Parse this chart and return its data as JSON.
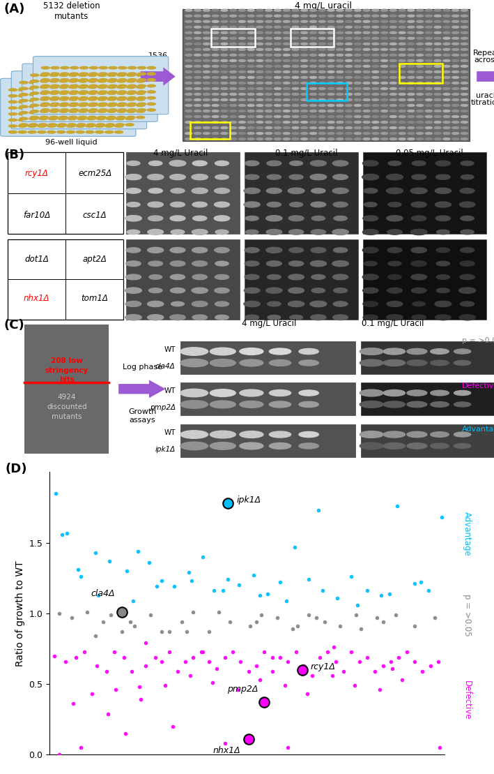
{
  "background_color": "#ffffff",
  "arrow_color": "#9b59d4",
  "scatter_cyan_x": [
    0.4,
    1.1,
    2.0,
    2.9,
    3.8,
    4.9,
    5.6,
    6.3,
    7.1,
    7.9,
    8.8,
    9.7,
    10.4,
    11.3,
    12.0,
    12.9,
    13.8,
    14.6,
    15.5,
    16.4,
    17.3,
    18.2,
    19.1,
    20.1,
    21.0,
    22.0,
    23.1,
    24.0,
    0.8,
    1.8,
    3.1,
    5.3,
    6.8,
    9.0,
    11.0,
    13.3,
    15.0,
    17.0,
    19.5,
    21.5,
    23.5,
    24.8
  ],
  "scatter_cyan_y": [
    1.85,
    1.57,
    1.26,
    1.43,
    1.37,
    1.3,
    1.44,
    1.36,
    1.23,
    1.19,
    1.29,
    1.4,
    1.16,
    1.24,
    1.2,
    1.27,
    1.14,
    1.22,
    1.47,
    1.24,
    1.16,
    1.11,
    1.26,
    1.16,
    1.13,
    1.76,
    1.21,
    1.16,
    1.56,
    1.31,
    1.13,
    1.09,
    1.19,
    1.23,
    1.16,
    1.13,
    1.09,
    1.73,
    1.06,
    1.14,
    1.22,
    1.68
  ],
  "scatter_gray_x": [
    0.6,
    1.4,
    2.4,
    3.4,
    4.6,
    5.4,
    6.4,
    7.6,
    8.4,
    9.1,
    10.1,
    11.4,
    12.7,
    13.4,
    14.4,
    15.4,
    16.4,
    17.4,
    18.4,
    19.4,
    20.7,
    21.1,
    21.9,
    23.1,
    24.4,
    2.9,
    5.1,
    7.1,
    10.7,
    13.1,
    16.9,
    19.7,
    3.9,
    8.7,
    15.7
  ],
  "scatter_gray_y": [
    1.0,
    0.97,
    1.01,
    0.94,
    0.87,
    0.91,
    0.99,
    0.87,
    0.94,
    1.01,
    0.87,
    0.94,
    0.91,
    0.99,
    0.97,
    0.89,
    0.99,
    0.94,
    0.91,
    0.99,
    0.97,
    0.94,
    0.99,
    0.91,
    0.97,
    0.84,
    0.94,
    0.87,
    1.01,
    0.94,
    0.97,
    0.89,
    0.99,
    0.87,
    0.91
  ],
  "scatter_magenta_x": [
    0.3,
    1.0,
    1.7,
    2.2,
    3.0,
    3.6,
    4.1,
    4.7,
    5.2,
    5.7,
    6.1,
    6.7,
    7.1,
    7.6,
    8.1,
    8.6,
    9.1,
    9.6,
    10.1,
    10.6,
    11.1,
    11.6,
    12.1,
    12.6,
    13.1,
    13.6,
    14.1,
    14.6,
    15.1,
    15.6,
    16.1,
    16.6,
    17.1,
    17.6,
    18.1,
    18.6,
    19.1,
    19.6,
    20.1,
    20.6,
    21.1,
    21.6,
    22.1,
    22.6,
    23.1,
    23.6,
    24.1,
    24.6,
    1.5,
    2.7,
    4.2,
    5.8,
    7.3,
    8.9,
    10.3,
    11.9,
    13.3,
    14.9,
    16.3,
    17.9,
    19.3,
    20.9,
    22.3,
    3.7,
    6.1,
    9.7,
    14.1,
    18.0,
    21.7,
    0.6,
    2.0,
    4.8,
    7.8,
    11.1,
    15.1,
    24.7
  ],
  "scatter_magenta_y": [
    0.7,
    0.66,
    0.69,
    0.73,
    0.63,
    0.59,
    0.73,
    0.69,
    0.59,
    0.48,
    0.63,
    0.69,
    0.66,
    0.73,
    0.59,
    0.66,
    0.69,
    0.73,
    0.66,
    0.61,
    0.69,
    0.73,
    0.66,
    0.59,
    0.63,
    0.73,
    0.59,
    0.69,
    0.66,
    0.73,
    0.63,
    0.56,
    0.69,
    0.73,
    0.66,
    0.59,
    0.73,
    0.66,
    0.69,
    0.59,
    0.63,
    0.66,
    0.69,
    0.73,
    0.66,
    0.59,
    0.63,
    0.66,
    0.36,
    0.43,
    0.46,
    0.39,
    0.49,
    0.56,
    0.51,
    0.46,
    0.53,
    0.49,
    0.43,
    0.56,
    0.49,
    0.46,
    0.53,
    0.29,
    0.79,
    0.73,
    0.69,
    0.76,
    0.61,
    0.0,
    0.05,
    0.15,
    0.2,
    0.08,
    0.05,
    0.05
  ],
  "ipk1_x": 11.3,
  "ipk1_y": 1.78,
  "cla4_x": 4.6,
  "cla4_y": 1.01,
  "rcy1_x": 16.0,
  "rcy1_y": 0.6,
  "pmp2_x": 13.6,
  "pmp2_y": 0.37,
  "nhx1_x": 12.6,
  "nhx1_y": 0.11,
  "ylim_scatter": [
    0.0,
    2.0
  ],
  "xlim_scatter": [
    0,
    25
  ],
  "ylabel_scatter": "Ratio of growth to WT",
  "legend_advantage": "Advantage",
  "legend_ns": "p = >0.05",
  "legend_defective": "Defective",
  "color_cyan": "#00bfff",
  "color_gray": "#888888",
  "color_magenta": "#ff00ff"
}
